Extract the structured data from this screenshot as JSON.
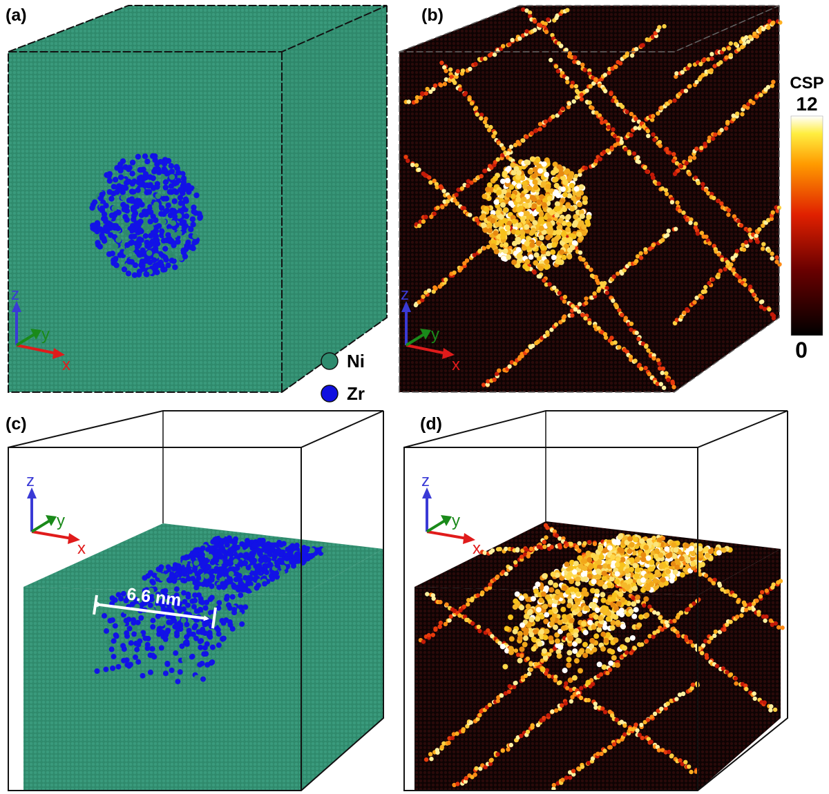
{
  "panels": {
    "a": {
      "label": "(a)"
    },
    "b": {
      "label": "(b)"
    },
    "c": {
      "label": "(c)"
    },
    "d": {
      "label": "(d)"
    }
  },
  "axes": {
    "z": "z",
    "y": "y",
    "x": "x"
  },
  "legend": {
    "ni": {
      "label": "Ni",
      "color": "#2e8b6e"
    },
    "zr": {
      "label": "Zr",
      "color": "#1010e0"
    }
  },
  "colorbar": {
    "title": "CSP",
    "max": "12",
    "min": "0"
  },
  "measurement": {
    "label": "6.6 nm"
  },
  "colors": {
    "ni_green": "#2f8a6c",
    "zr_blue": "#1212e6",
    "csp_dark": "#1a0606",
    "csp_hot": "#f2b21c"
  }
}
